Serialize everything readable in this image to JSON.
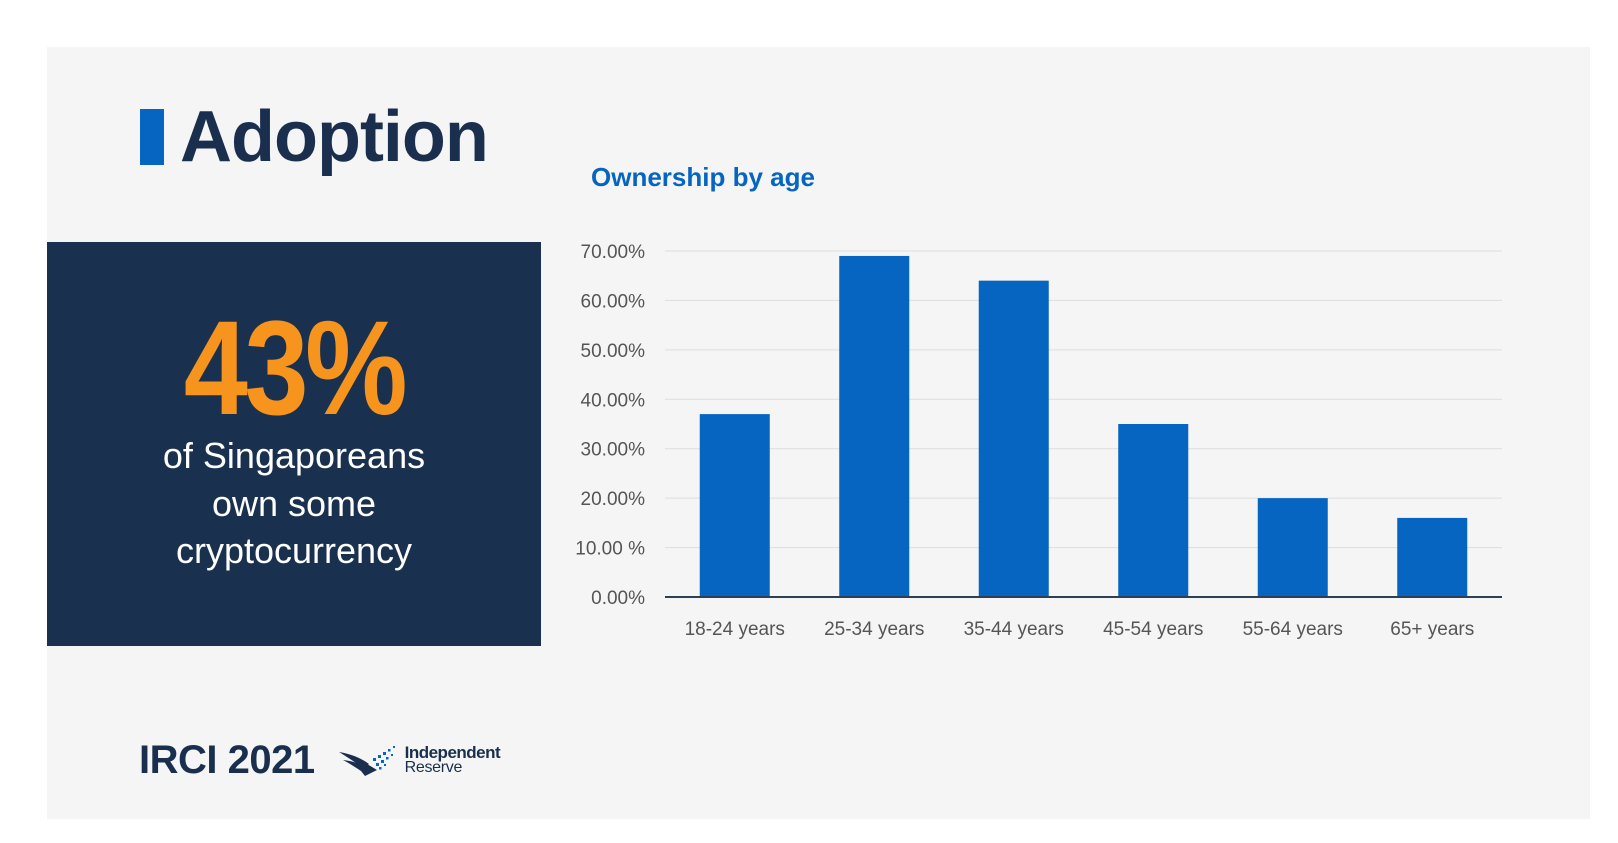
{
  "heading": {
    "title": "Adoption"
  },
  "stat": {
    "value": "43%",
    "line1": "of Singaporeans",
    "line2": "own some",
    "line3": "cryptocurrency"
  },
  "footer": {
    "label": "IRCI 2021",
    "logo_line1": "Independent",
    "logo_line2": "Reserve",
    "logo_icon": "eagle-wing-icon"
  },
  "colors": {
    "accent": "#0565c0",
    "navy": "#19314f",
    "orange": "#f7941d",
    "heading_text": "#1a2f4d",
    "bar": "#0565c0",
    "grid": "#dddddd",
    "axis": "#2f3f52"
  },
  "chart_data": {
    "type": "bar",
    "title": "Ownership by age",
    "categories": [
      "18-24 years",
      "25-34 years",
      "35-44 years",
      "45-54 years",
      "55-64 years",
      "65+ years"
    ],
    "values": [
      37,
      69,
      64,
      35,
      20,
      16
    ],
    "ylim": [
      0,
      70
    ],
    "yticks": [
      0,
      10,
      20,
      30,
      40,
      50,
      60,
      70
    ],
    "ytick_labels": [
      "0.00%",
      "10.00 %",
      "20.00%",
      "30.00%",
      "40.00%",
      "50.00%",
      "60.00%",
      "70.00%"
    ],
    "xlabel": "",
    "ylabel": "",
    "grid": true,
    "legend": "none"
  }
}
